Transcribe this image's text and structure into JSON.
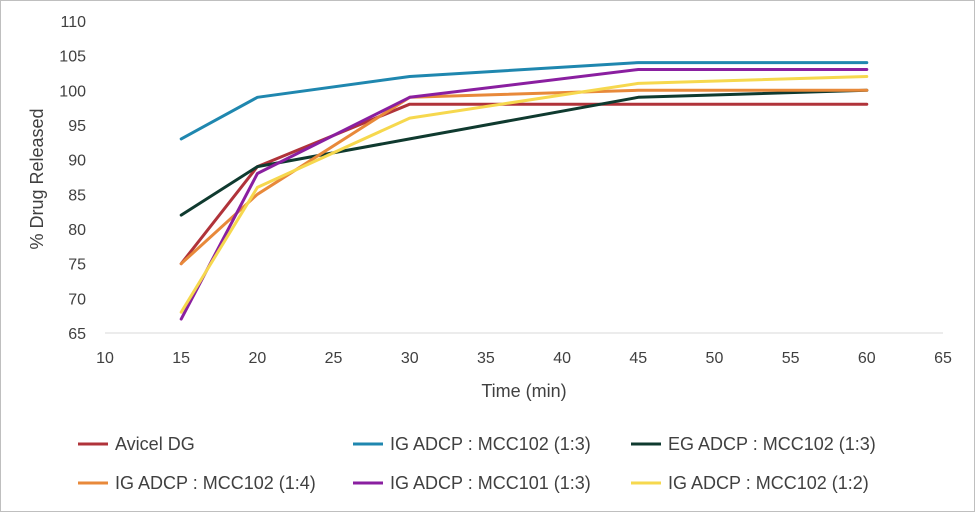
{
  "chart_data": {
    "type": "line",
    "title": "",
    "xlabel": "Time (min)",
    "ylabel": "% Drug Released",
    "xlim": [
      10,
      65
    ],
    "ylim": [
      65,
      110
    ],
    "xticks": [
      10,
      15,
      20,
      25,
      30,
      35,
      40,
      45,
      50,
      55,
      60,
      65
    ],
    "yticks": [
      65,
      70,
      75,
      80,
      85,
      90,
      95,
      100,
      105,
      110
    ],
    "grid": false,
    "legend_position": "bottom",
    "x": [
      15,
      20,
      30,
      45,
      60
    ],
    "series": [
      {
        "name": "Avicel DG",
        "color": "#B0333A",
        "values": [
          75,
          89,
          98,
          98,
          98
        ]
      },
      {
        "name": "IG ADCP : MCC102 (1:3)",
        "color": "#1F87AF",
        "values": [
          93,
          99,
          102,
          104,
          104
        ]
      },
      {
        "name": "EG ADCP : MCC102 (1:3)",
        "color": "#0F3A2F",
        "values": [
          82,
          89,
          93,
          99,
          100
        ]
      },
      {
        "name": "IG ADCP : MCC102 (1:4)",
        "color": "#E8893A",
        "values": [
          75,
          85,
          99,
          100,
          100
        ]
      },
      {
        "name": "IG ADCP : MCC101 (1:3)",
        "color": "#8A1FA0",
        "values": [
          67,
          88,
          99,
          103,
          103
        ]
      },
      {
        "name": "IG ADCP : MCC102 (1:2)",
        "color": "#F6D84E",
        "values": [
          68,
          86,
          96,
          101,
          102
        ]
      }
    ]
  }
}
